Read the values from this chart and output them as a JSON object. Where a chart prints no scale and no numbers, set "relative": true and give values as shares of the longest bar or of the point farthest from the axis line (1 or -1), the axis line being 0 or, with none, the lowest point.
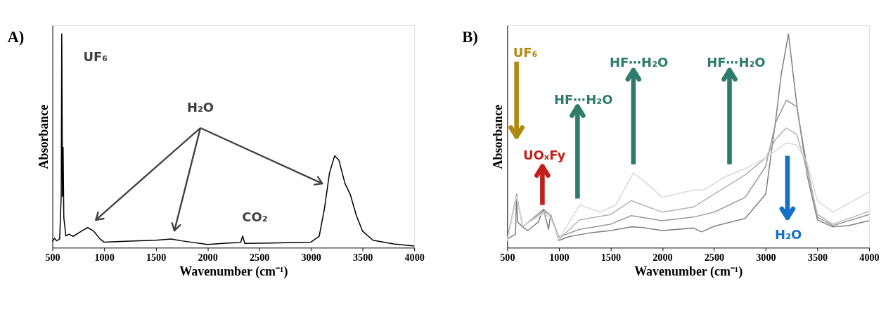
{
  "chart_data": [
    {
      "type": "line",
      "title": "A)",
      "xlabel": "Wavenumber (cm⁻¹)",
      "ylabel": "Absorbance",
      "relative": true,
      "xlim": [
        500,
        4000
      ],
      "xticks": [
        500,
        1000,
        1500,
        2000,
        2500,
        3000,
        3500,
        4000
      ],
      "grid": false,
      "legend": false,
      "line_style": "solid",
      "marker": "none",
      "series": [
        {
          "color": "#000000",
          "x": [
            500,
            520,
            540,
            570,
            585,
            590,
            597,
            603,
            610,
            630,
            660,
            700,
            780,
            840,
            900,
            960,
            1000,
            1200,
            1500,
            1650,
            1750,
            2000,
            2200,
            2320,
            2340,
            2360,
            2600,
            3000,
            3080,
            3130,
            3180,
            3230,
            3270,
            3330,
            3380,
            3440,
            3500,
            3600,
            3800,
            4000
          ],
          "values": [
            0.03,
            0.044,
            0.032,
            0.04,
            0.25,
            1,
            0.24,
            0.47,
            0.14,
            0.055,
            0.063,
            0.053,
            0.077,
            0.094,
            0.077,
            0.041,
            0.026,
            0.03,
            0.035,
            0.041,
            0.032,
            0.015,
            0.022,
            0.024,
            0.055,
            0.02,
            0.022,
            0.026,
            0.053,
            0.18,
            0.35,
            0.43,
            0.41,
            0.3,
            0.25,
            0.15,
            0.077,
            0.035,
            0.018,
            0.008
          ]
        }
      ],
      "annotations": [
        "UF₆",
        "H₂O",
        "CO₂"
      ]
    },
    {
      "type": "line",
      "title": "B)",
      "xlabel": "Wavenumber (cm⁻¹)",
      "ylabel": "Absorbance",
      "relative": true,
      "xlim": [
        500,
        4000
      ],
      "xticks": [
        500,
        1000,
        1500,
        2000,
        2500,
        3000,
        3500,
        4000
      ],
      "grid": false,
      "legend": false,
      "line_style": "solid",
      "marker": "none",
      "series": [
        {
          "color": "#808080",
          "x": [
            500,
            580,
            590,
            600,
            650,
            700,
            800,
            850,
            900,
            920,
            1000,
            1100,
            1300,
            1500,
            1700,
            1800,
            2000,
            2300,
            2380,
            2500,
            2800,
            3000,
            3100,
            3150,
            3220,
            3300,
            3400,
            3500,
            3650,
            3800,
            4000
          ],
          "values": [
            0.04,
            0.063,
            0.25,
            0.12,
            0.097,
            0.08,
            0.12,
            0.18,
            0.086,
            0.155,
            0.034,
            0.052,
            0.069,
            0.08,
            0.097,
            0.095,
            0.08,
            0.092,
            0.074,
            0.1,
            0.137,
            0.25,
            0.61,
            0.81,
            1,
            0.67,
            0.34,
            0.13,
            0.097,
            0.103,
            0.126
          ]
        },
        {
          "color": "#999999",
          "x": [
            500,
            590,
            650,
            850,
            920,
            1000,
            1200,
            1500,
            1700,
            2000,
            2300,
            2500,
            2800,
            3000,
            3100,
            3200,
            3300,
            3400,
            3500,
            3650,
            4000
          ],
          "values": [
            0.04,
            0.25,
            0.097,
            0.18,
            0.15,
            0.05,
            0.086,
            0.11,
            0.15,
            0.126,
            0.143,
            0.166,
            0.235,
            0.38,
            0.59,
            0.69,
            0.66,
            0.38,
            0.143,
            0.103,
            0.155
          ]
        },
        {
          "color": "#b3b3b3",
          "x": [
            500,
            590,
            650,
            850,
            920,
            1000,
            1200,
            1500,
            1700,
            2000,
            2300,
            2500,
            2800,
            3000,
            3100,
            3200,
            3300,
            3400,
            3500,
            3650,
            4000
          ],
          "values": [
            0.035,
            0.24,
            0.1,
            0.17,
            0.15,
            0.04,
            0.13,
            0.155,
            0.22,
            0.166,
            0.19,
            0.25,
            0.34,
            0.42,
            0.51,
            0.56,
            0.53,
            0.36,
            0.155,
            0.11,
            0.17
          ]
        },
        {
          "color": "#d9d9d9",
          "x": [
            500,
            590,
            650,
            850,
            920,
            1000,
            1200,
            1400,
            1550,
            1720,
            1850,
            2000,
            2300,
            2400,
            2600,
            2800,
            3000,
            3200,
            3300,
            3400,
            3500,
            3650,
            4000
          ],
          "values": [
            0.03,
            0.24,
            0.1,
            0.16,
            0.14,
            0.04,
            0.2,
            0.166,
            0.2,
            0.35,
            0.3,
            0.235,
            0.27,
            0.27,
            0.33,
            0.37,
            0.42,
            0.49,
            0.48,
            0.4,
            0.22,
            0.166,
            0.26
          ]
        }
      ],
      "annotations": [
        "UF₆",
        "UOₓFy",
        "HF⋯H₂O",
        "HF⋯H₂O",
        "HF⋯H₂O",
        "H₂O"
      ]
    }
  ]
}
